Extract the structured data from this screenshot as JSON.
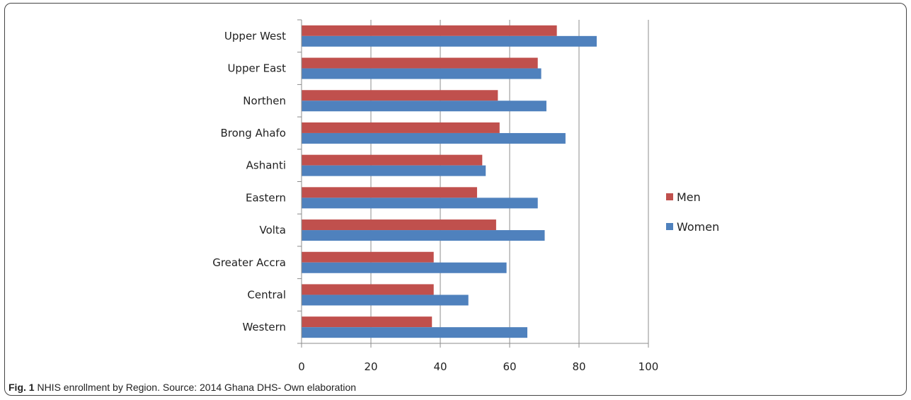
{
  "caption": {
    "label": "Fig. 1",
    "text": "NHIS enrollment by Region. Source: 2014 Ghana DHS- Own elaboration"
  },
  "chart_data": {
    "type": "bar",
    "orientation": "horizontal",
    "categories": [
      "Upper West",
      "Upper East",
      "Northen",
      "Brong Ahafo",
      "Ashanti",
      "Eastern",
      "Volta",
      "Greater Accra",
      "Central",
      "Western"
    ],
    "series": [
      {
        "name": "Men",
        "color": "#c0504d",
        "values": [
          73.5,
          68,
          56.5,
          57,
          52,
          50.5,
          56,
          38,
          38,
          37.5
        ]
      },
      {
        "name": "Women",
        "color": "#4f81bd",
        "values": [
          85,
          69,
          70.5,
          76,
          53,
          68,
          70,
          59,
          48,
          65
        ]
      }
    ],
    "xlim": [
      0,
      100
    ],
    "xticks": [
      0,
      20,
      40,
      60,
      80,
      100
    ],
    "grid": true,
    "legend": "right"
  }
}
